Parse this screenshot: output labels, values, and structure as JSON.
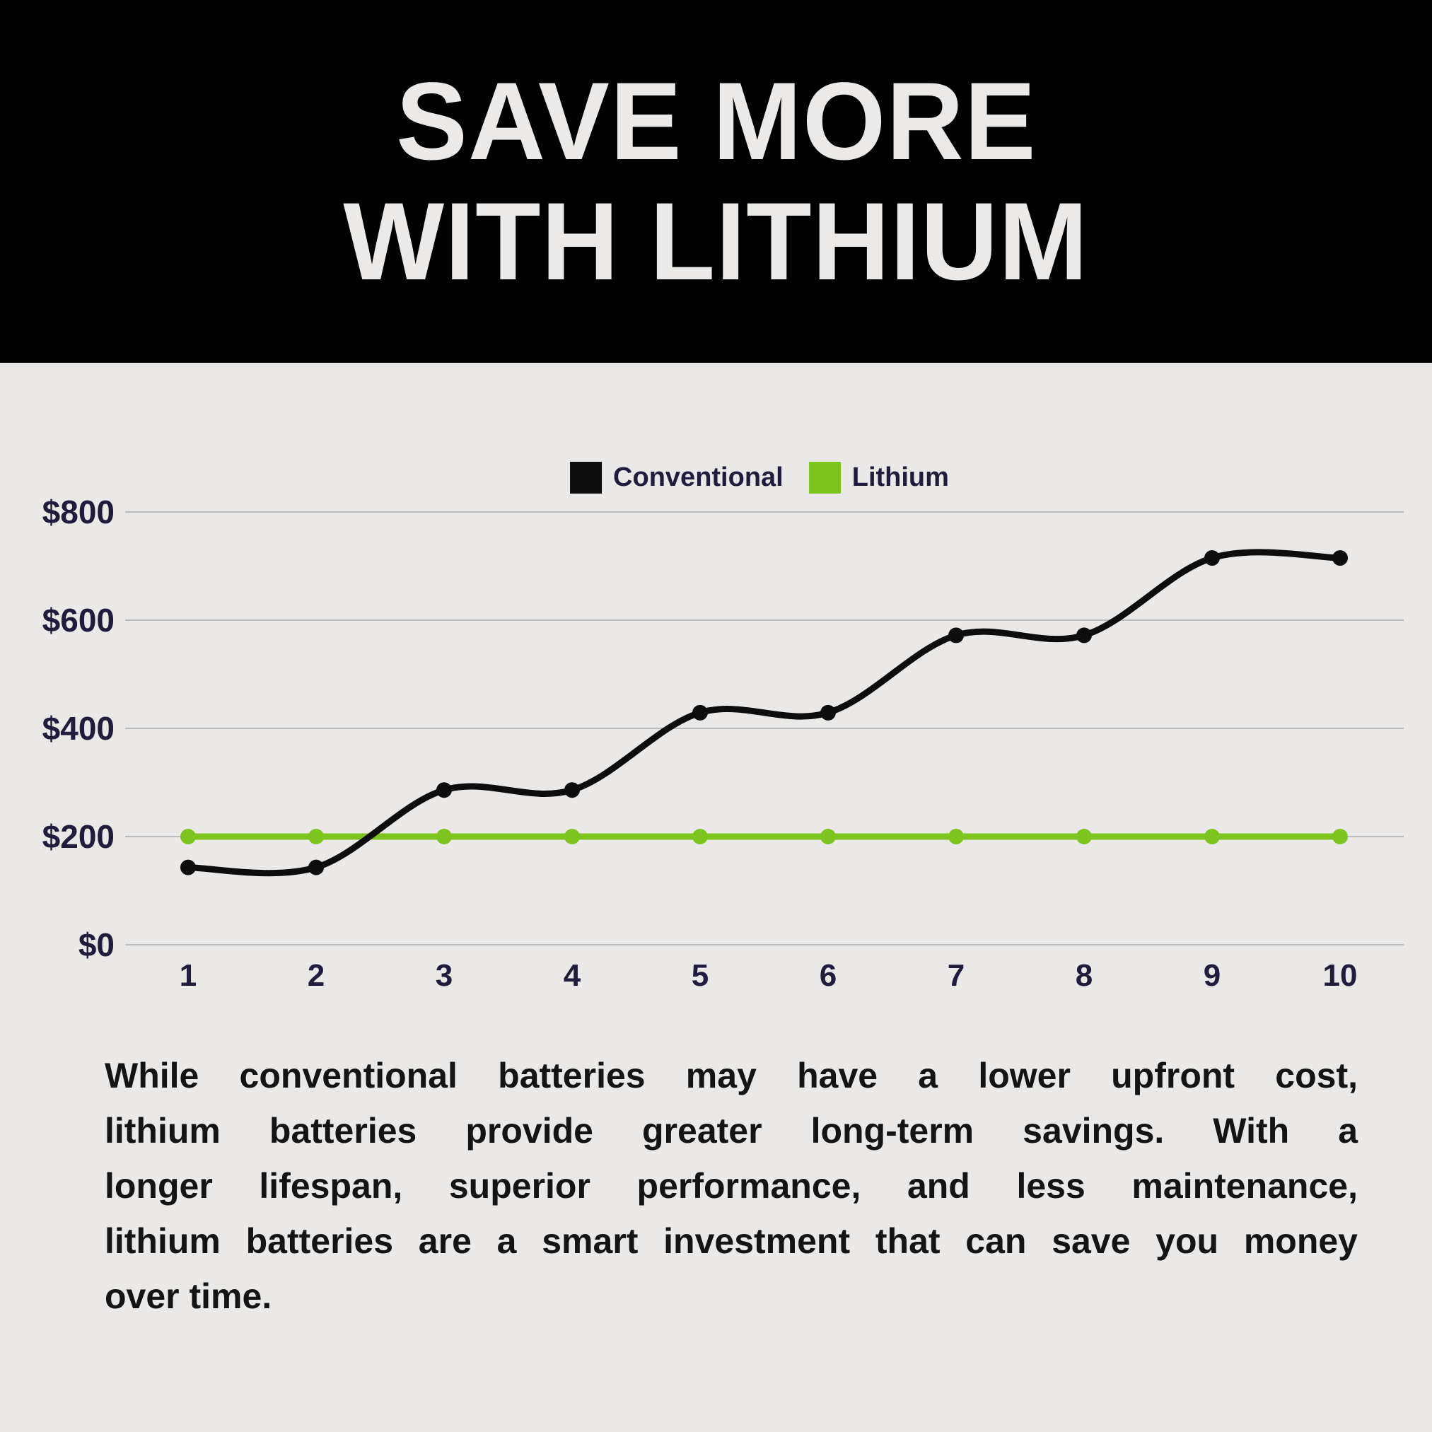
{
  "header": {
    "title_line1": "SAVE MORE",
    "title_line2": "WITH LITHIUM"
  },
  "legend": {
    "items": [
      {
        "label": "Conventional",
        "color": "#0d0d0d"
      },
      {
        "label": "Lithium",
        "color": "#7dc41f"
      }
    ]
  },
  "chart_data": {
    "type": "line",
    "categories": [
      "1",
      "2",
      "3",
      "4",
      "5",
      "6",
      "7",
      "8",
      "9",
      "10"
    ],
    "series": [
      {
        "name": "Conventional",
        "color": "#0d0d0d",
        "values": [
          143,
          143,
          286,
          286,
          429,
          429,
          572,
          572,
          715,
          715
        ]
      },
      {
        "name": "Lithium",
        "color": "#7dc41f",
        "values": [
          200,
          200,
          200,
          200,
          200,
          200,
          200,
          200,
          200,
          200
        ]
      }
    ],
    "ylim": [
      0,
      800
    ],
    "ytick_step": 200,
    "ytick_labels": [
      "$0",
      "$200",
      "$400",
      "$600",
      "$800"
    ],
    "xlabel": "",
    "ylabel": "",
    "grid": "horizontal",
    "legend_position": "top"
  },
  "paragraph": {
    "lines": [
      "While conventional batteries may have a lower upfront cost,",
      "lithium batteries provide greater long-term savings. With a",
      "longer lifespan, superior performance, and less maintenance,",
      "lithium batteries are a smart investment that can save you money",
      "over time."
    ]
  },
  "colors": {
    "background": "#eae9e8",
    "header_bg": "#000000",
    "title_text": "#eceae8",
    "axis_text": "#211b3c",
    "gridline": "#bcbcbc",
    "paragraph_text": "#141414",
    "conventional": "#0d0d0d",
    "lithium": "#7dc41f"
  }
}
